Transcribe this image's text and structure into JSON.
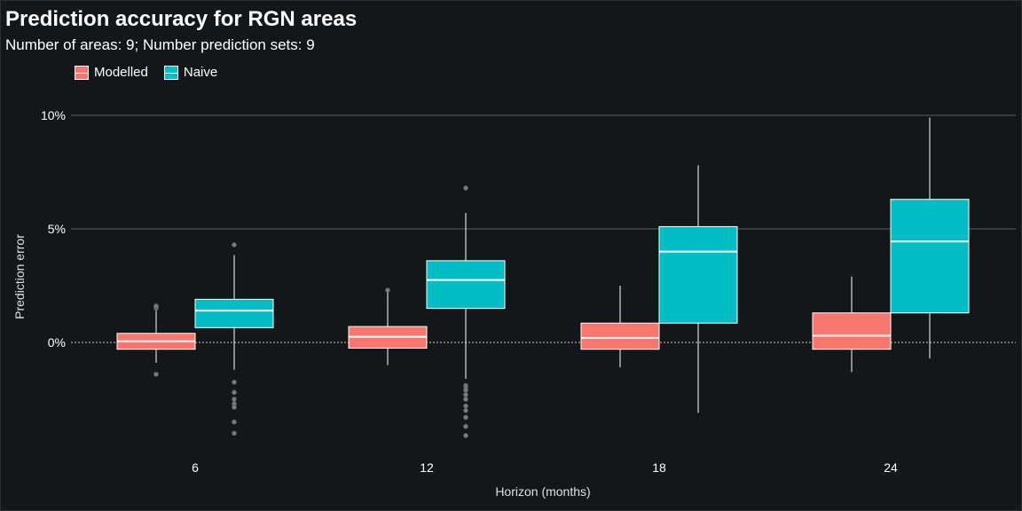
{
  "title": "Prediction accuracy for RGN areas",
  "subtitle": "Number of areas: 9; Number prediction sets: 9",
  "legend": [
    {
      "name": "Modelled",
      "color": "#f8766d"
    },
    {
      "name": "Naive",
      "color": "#00bfc4"
    }
  ],
  "chart_data": {
    "type": "boxplot",
    "xlabel": "Horizon (months)",
    "ylabel": "Prediction error",
    "categories": [
      "6",
      "12",
      "18",
      "24"
    ],
    "ylim": [
      -4.8,
      10.5
    ],
    "yticks": [
      0,
      5,
      10
    ],
    "ytick_labels": [
      "0%",
      "5%",
      "10%"
    ],
    "grid": true,
    "reference_line": 0,
    "legend_position": "top-left",
    "series": [
      {
        "name": "Modelled",
        "color": "#f8766d",
        "boxes": [
          {
            "whisker_low": -0.9,
            "q1": -0.3,
            "median": 0.05,
            "q3": 0.4,
            "whisker_high": 1.4,
            "outliers": [
              -1.4,
              1.5,
              1.55,
              1.6
            ]
          },
          {
            "whisker_low": -1.0,
            "q1": -0.25,
            "median": 0.25,
            "q3": 0.7,
            "whisker_high": 2.2,
            "outliers": [
              2.3
            ]
          },
          {
            "whisker_low": -1.1,
            "q1": -0.3,
            "median": 0.2,
            "q3": 0.85,
            "whisker_high": 2.5,
            "outliers": []
          },
          {
            "whisker_low": -1.3,
            "q1": -0.3,
            "median": 0.3,
            "q3": 1.3,
            "whisker_high": 2.9,
            "outliers": []
          }
        ]
      },
      {
        "name": "Naive",
        "color": "#00bfc4",
        "boxes": [
          {
            "whisker_low": -1.2,
            "q1": 0.65,
            "median": 1.4,
            "q3": 1.9,
            "whisker_high": 3.85,
            "outliers": [
              -1.75,
              -2.2,
              -2.5,
              -2.7,
              -2.85,
              -3.5,
              -4.0,
              4.3
            ]
          },
          {
            "whisker_low": -1.6,
            "q1": 1.5,
            "median": 2.75,
            "q3": 3.6,
            "whisker_high": 5.7,
            "outliers": [
              -1.9,
              -2.0,
              -2.1,
              -2.3,
              -2.5,
              -2.8,
              -3.0,
              -3.3,
              -3.7,
              -4.1,
              6.8
            ]
          },
          {
            "whisker_low": -3.1,
            "q1": 0.85,
            "median": 4.0,
            "q3": 5.1,
            "whisker_high": 7.8,
            "outliers": []
          },
          {
            "whisker_low": -0.7,
            "q1": 1.3,
            "median": 4.45,
            "q3": 6.3,
            "whisker_high": 9.9,
            "outliers": []
          }
        ]
      }
    ]
  }
}
